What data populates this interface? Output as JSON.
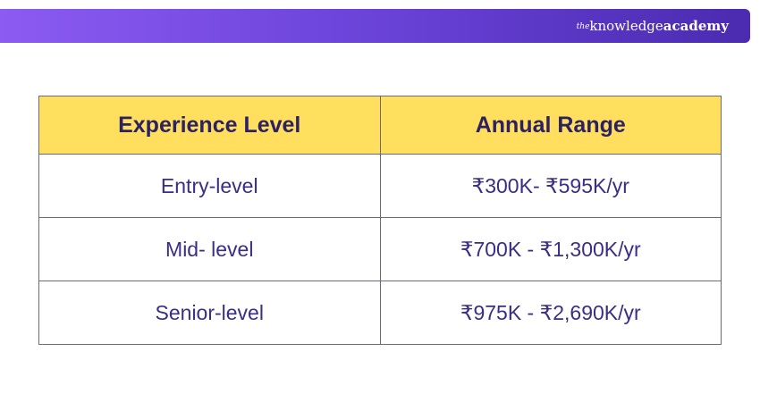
{
  "brand": {
    "the": "the",
    "knowledge": "knowledge",
    "academy": "academy"
  },
  "table": {
    "headers": [
      "Experience Level",
      "Annual Range"
    ],
    "rows": [
      [
        "Entry-level",
        "₹300K- ₹595K/yr"
      ],
      [
        "Mid- level",
        "₹700K - ₹1,300K/yr"
      ],
      [
        "Senior-level",
        "₹975K - ₹2,690K/yr"
      ]
    ]
  },
  "colors": {
    "header_bg": "#ffdf5d",
    "text": "#3b2d86",
    "bar_start": "#8c5bf2",
    "bar_end": "#4b2bb0"
  }
}
